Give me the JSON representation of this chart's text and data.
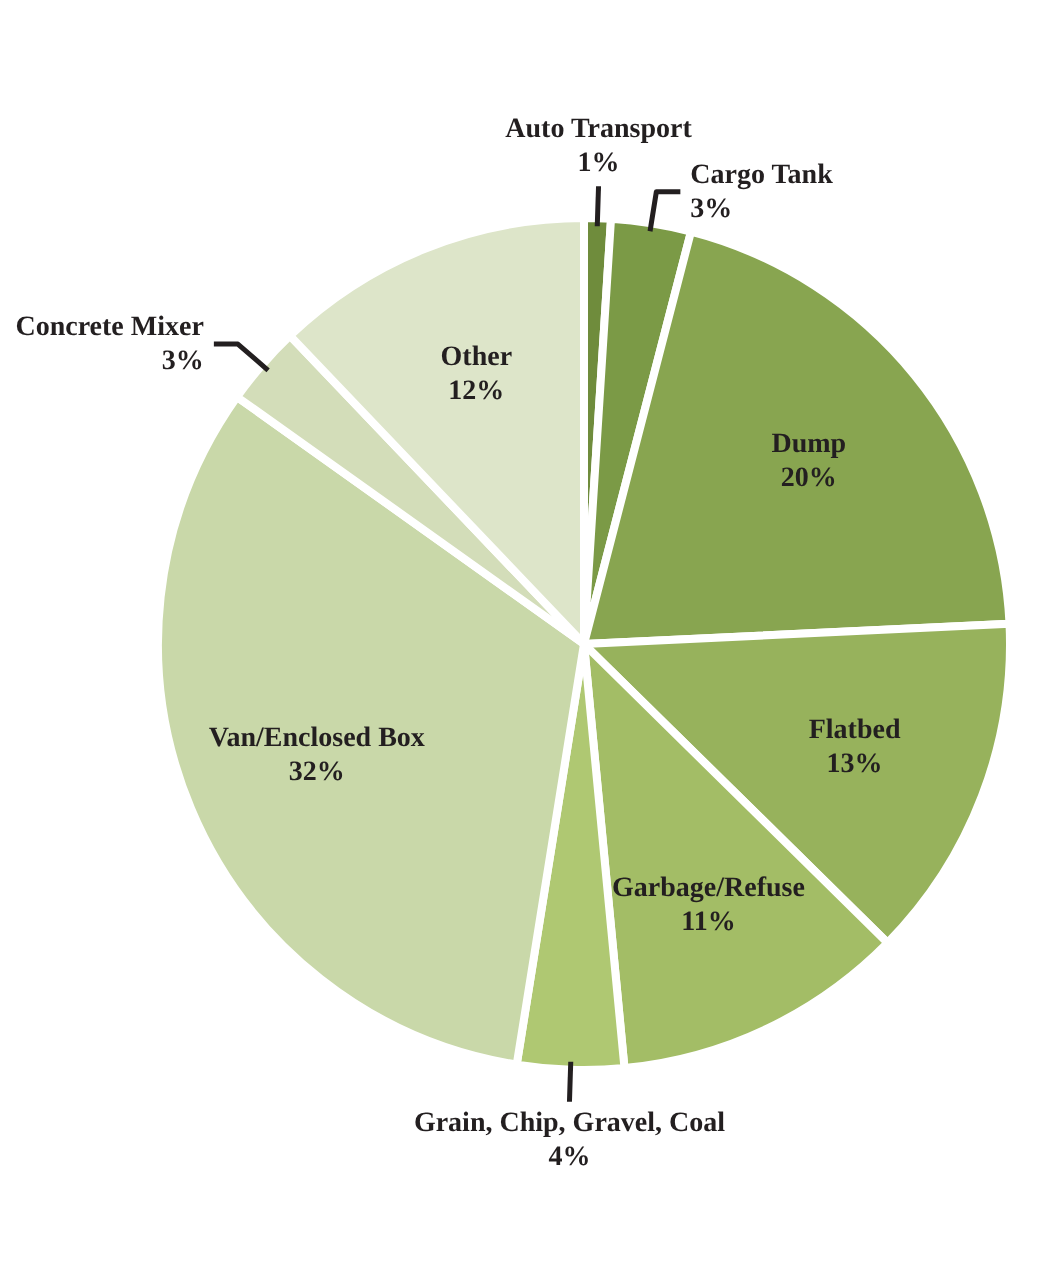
{
  "chart_data": {
    "type": "pie",
    "categories": [
      "Auto Transport",
      "Cargo Tank",
      "Dump",
      "Flatbed",
      "Garbage/Refuse",
      "Grain, Chip, Gravel, Coal",
      "Van/Enclosed Box",
      "Concrete Mixer",
      "Other"
    ],
    "values": [
      1,
      3,
      20,
      13,
      11,
      4,
      32,
      3,
      12
    ],
    "value_labels": [
      "1%",
      "3%",
      "20%",
      "13%",
      "11%",
      "4%",
      "32%",
      "3%",
      "12%"
    ],
    "colors": [
      "#6f8c3c",
      "#7b9a46",
      "#88a550",
      "#97b25c",
      "#a3bd66",
      "#afc872",
      "#c9d8a9",
      "#d3ddb9",
      "#dde5c9"
    ],
    "legend": false
  }
}
